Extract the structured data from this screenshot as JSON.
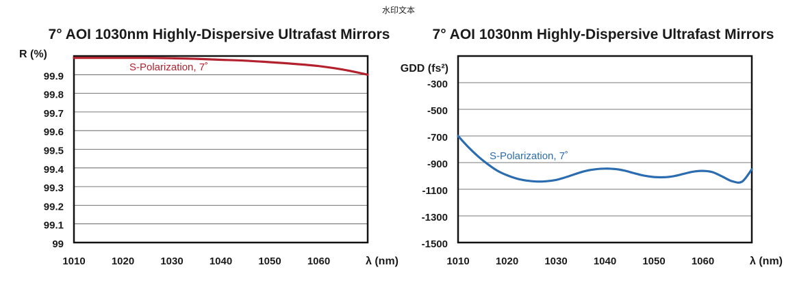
{
  "watermark": "水印文本",
  "chart_data": [
    {
      "type": "line",
      "title": "7° AOI 1030nm Highly-Dispersive Ultrafast Mirrors",
      "xlabel": "λ (nm)",
      "ylabel": "R (%)",
      "xlim": [
        1010,
        1070
      ],
      "ylim": [
        99,
        100
      ],
      "x_ticks": [
        "1010",
        "1020",
        "1030",
        "1040",
        "1050",
        "1060"
      ],
      "y_ticks": [
        "99",
        "99.1",
        "99.2",
        "99.3",
        "99.4",
        "99.5",
        "99.6",
        "99.7",
        "99.8",
        "99.9"
      ],
      "grid": true,
      "color": "#b3212e",
      "series": [
        {
          "name": "S-Polarization, 7˚",
          "x": [
            1010,
            1015,
            1020,
            1025,
            1030,
            1035,
            1040,
            1045,
            1050,
            1055,
            1060,
            1065,
            1070
          ],
          "y": [
            99.99,
            99.99,
            99.99,
            99.99,
            99.988,
            99.985,
            99.98,
            99.975,
            99.967,
            99.958,
            99.946,
            99.927,
            99.9
          ]
        }
      ]
    },
    {
      "type": "line",
      "title": "7° AOI 1030nm Highly-Dispersive Ultrafast Mirrors",
      "xlabel": "λ (nm)",
      "ylabel": "GDD (fs²)",
      "xlim": [
        1010,
        1070
      ],
      "ylim": [
        -1500,
        -100
      ],
      "x_ticks": [
        "1010",
        "1020",
        "1030",
        "1040",
        "1050",
        "1060"
      ],
      "y_ticks": [
        "-300",
        "-500",
        "-700",
        "-900",
        "-1100",
        "-1300",
        "-1500"
      ],
      "grid": true,
      "color": "#2b6cb0",
      "series": [
        {
          "name": "S-Polarization, 7˚",
          "x": [
            1010,
            1012,
            1014,
            1016,
            1018,
            1020,
            1022,
            1024,
            1026,
            1028,
            1030,
            1032,
            1034,
            1036,
            1038,
            1040,
            1042,
            1044,
            1046,
            1048,
            1050,
            1052,
            1054,
            1056,
            1058,
            1060,
            1062,
            1064,
            1066,
            1068,
            1070
          ],
          "y": [
            -700,
            -780,
            -850,
            -910,
            -960,
            -995,
            -1020,
            -1035,
            -1042,
            -1040,
            -1030,
            -1010,
            -985,
            -963,
            -950,
            -945,
            -948,
            -960,
            -980,
            -998,
            -1008,
            -1010,
            -1002,
            -985,
            -968,
            -962,
            -972,
            -1005,
            -1040,
            -1043,
            -950
          ]
        }
      ]
    }
  ]
}
